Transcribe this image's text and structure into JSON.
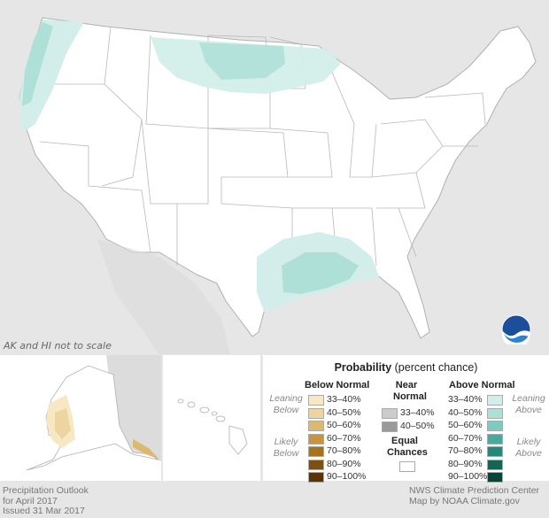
{
  "map": {
    "scale_note": "AK and HI not to scale"
  },
  "legend": {
    "title_bold": "Probability",
    "title_rest": " (percent chance)",
    "below_title": "Below Normal",
    "near_title_1": "Near",
    "near_title_2": "Normal",
    "above_title": "Above Normal",
    "leaning_below_1": "Leaning",
    "leaning_below_2": "Below",
    "likely_below_1": "Likely",
    "likely_below_2": "Below",
    "leaning_above_1": "Leaning",
    "leaning_above_2": "Above",
    "likely_above_1": "Likely",
    "likely_above_2": "Above",
    "equal_1": "Equal",
    "equal_2": "Chances",
    "below": [
      {
        "label": "33–40%",
        "color": "#f7e8c3"
      },
      {
        "label": "40–50%",
        "color": "#ecd5a0"
      },
      {
        "label": "50–60%",
        "color": "#ddb871"
      },
      {
        "label": "60–70%",
        "color": "#c8943f"
      },
      {
        "label": "70–80%",
        "color": "#a8711f"
      },
      {
        "label": "80–90%",
        "color": "#7f4e10"
      },
      {
        "label": "90–100%",
        "color": "#5a3306"
      }
    ],
    "near": [
      {
        "label": "33–40%",
        "color": "#cccccc"
      },
      {
        "label": "40–50%",
        "color": "#9a9a9a"
      }
    ],
    "above": [
      {
        "label": "33–40%",
        "color": "#d3eeea"
      },
      {
        "label": "40–50%",
        "color": "#aee0d8"
      },
      {
        "label": "50–60%",
        "color": "#7ccbbd"
      },
      {
        "label": "60–70%",
        "color": "#46ab9b"
      },
      {
        "label": "70–80%",
        "color": "#22887a"
      },
      {
        "label": "80–90%",
        "color": "#0f6659"
      },
      {
        "label": "90–100%",
        "color": "#04443a"
      }
    ]
  },
  "footer": {
    "left_1": "Precipitation Outlook",
    "left_2": "for April 2017",
    "left_3": "Issued 31 Mar 2017",
    "right_1": "NWS Climate Prediction Center",
    "right_2": "Map by NOAA Climate.gov"
  },
  "colors": {
    "background": "#e6e6e6",
    "land": "#ffffff",
    "state_border": "#b0b0b0"
  }
}
